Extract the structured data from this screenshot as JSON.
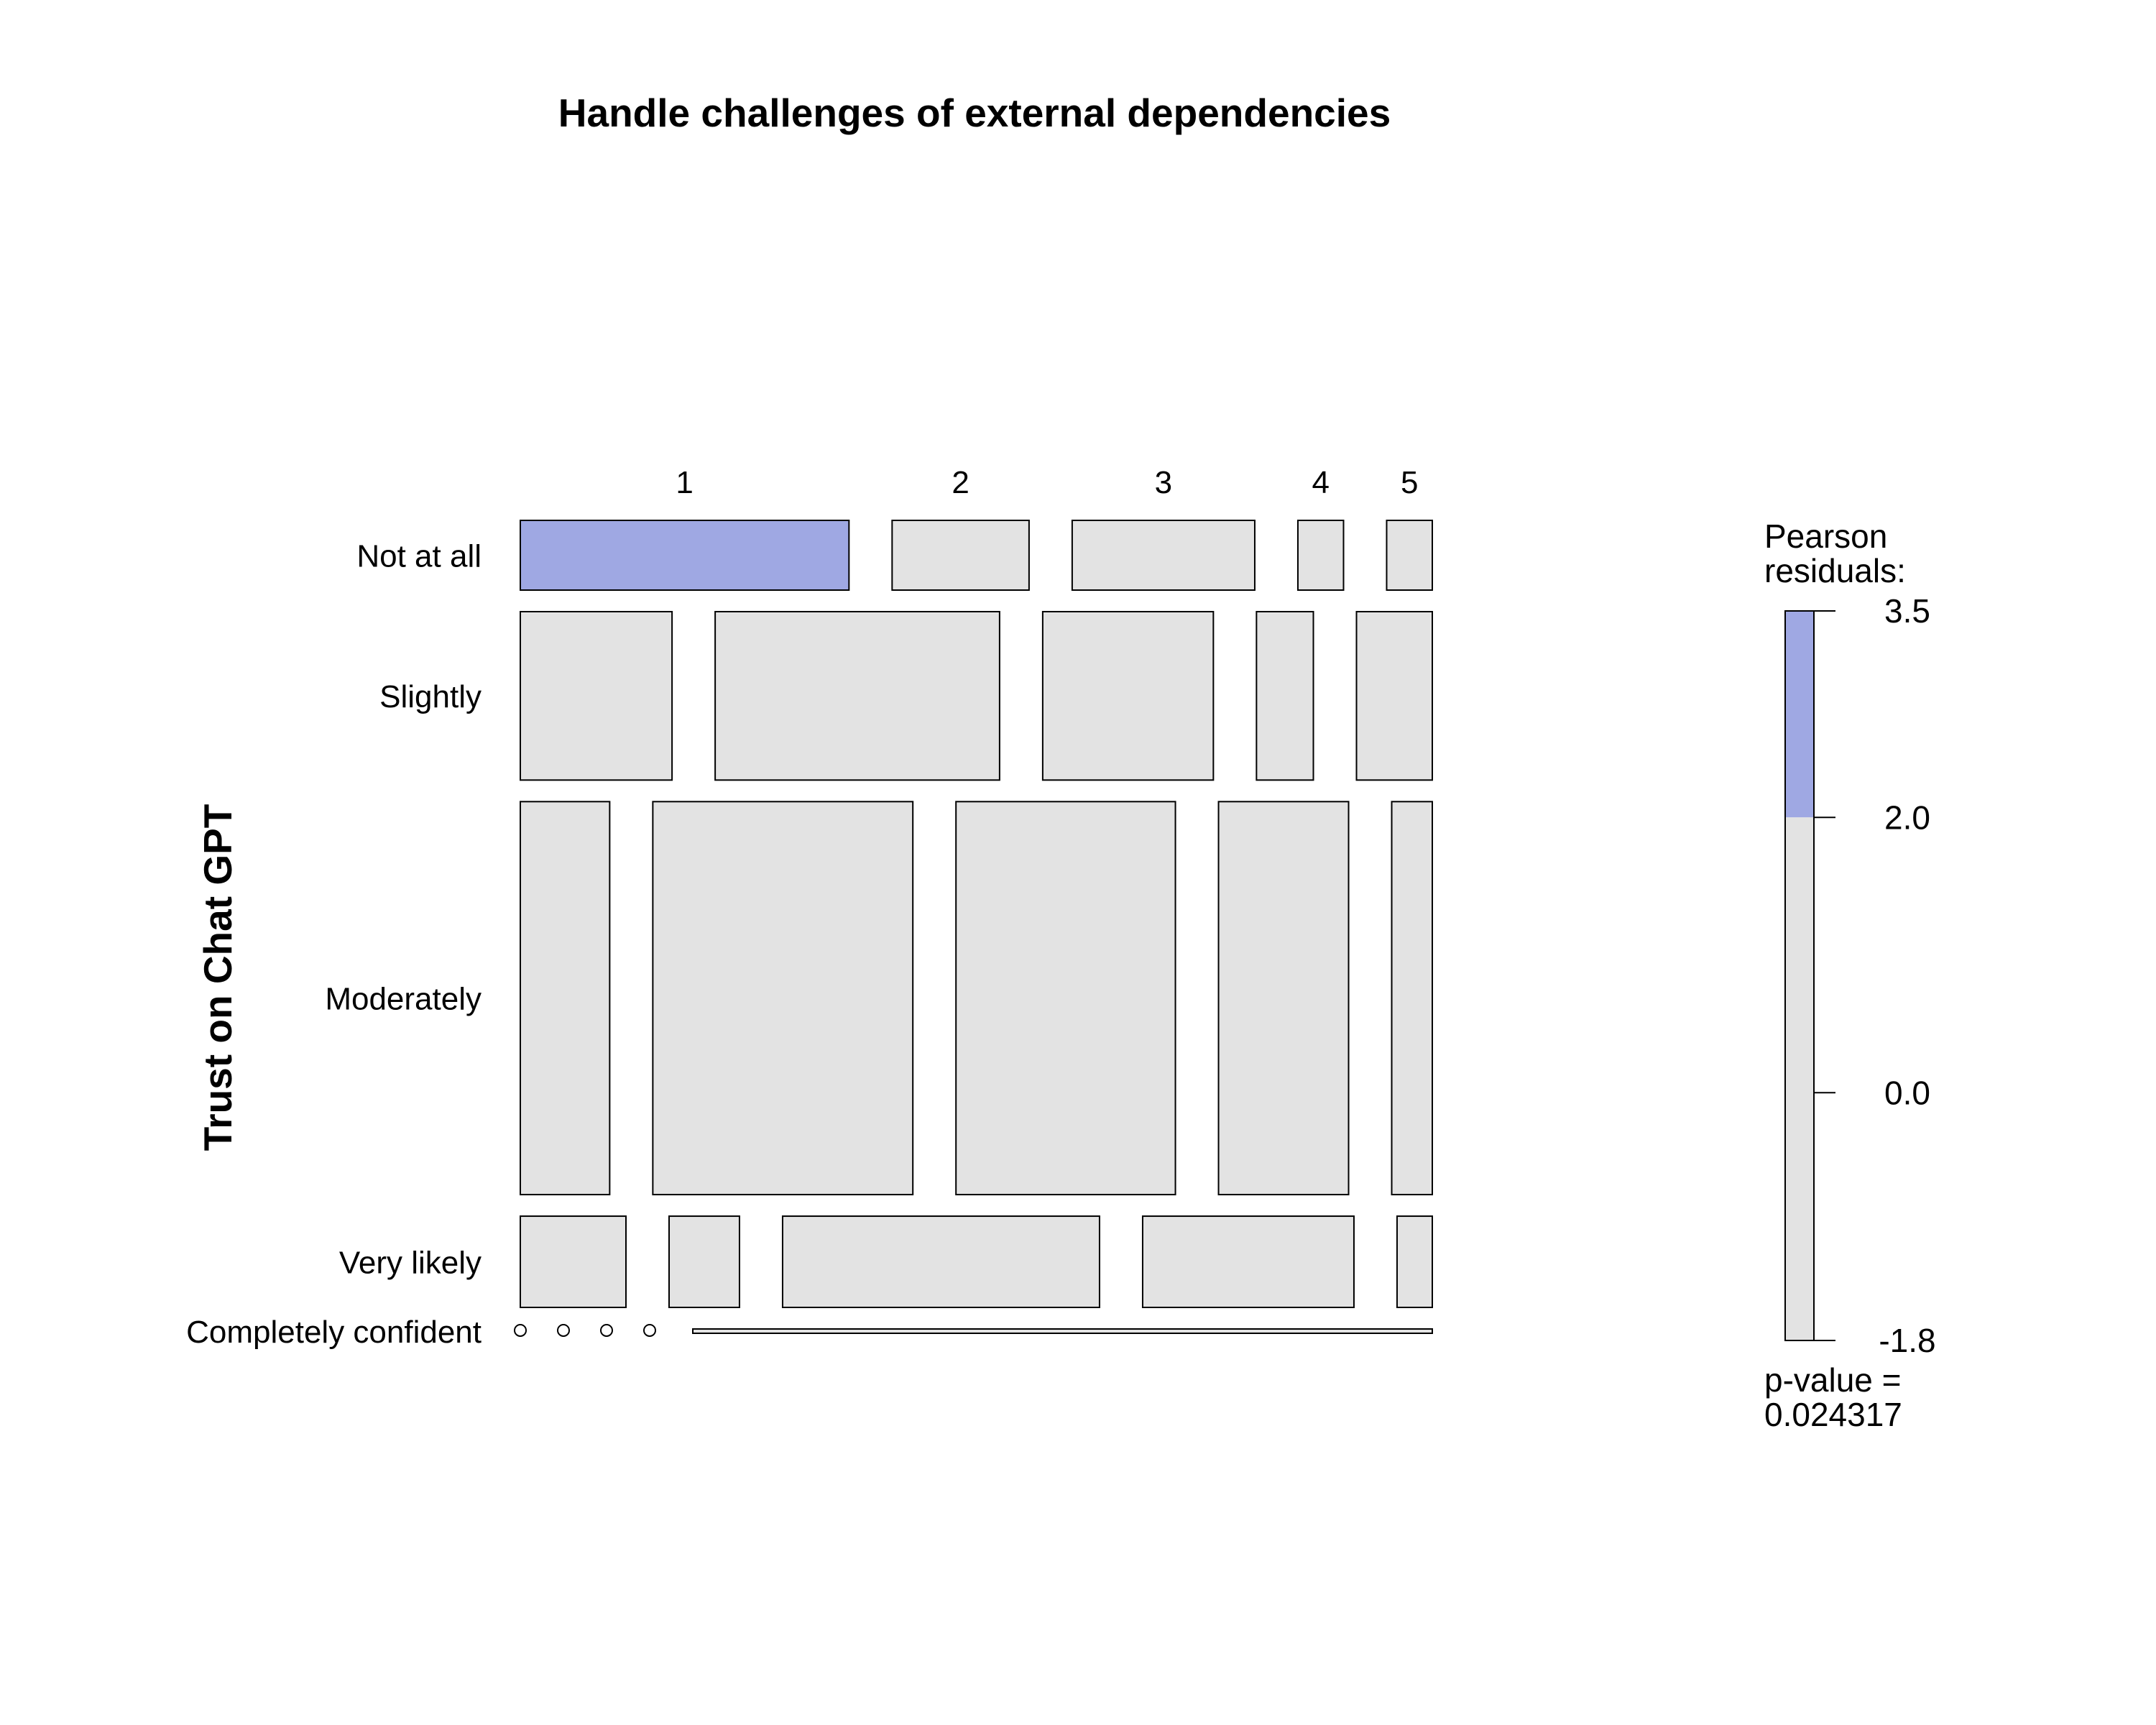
{
  "chart_data": {
    "type": "mosaic",
    "title": "Handle challenges of external dependencies",
    "xlabel": "",
    "ylabel": "Trust on Chat GPT",
    "rows": [
      "Not at all",
      "Slightly",
      "Moderately",
      "Very likely",
      "Completely confident"
    ],
    "row_fraction": [
      0.0842,
      0.2034,
      0.4746,
      0.1102,
      0.0034
    ],
    "row_segments": [
      {
        "row": "Not at all",
        "column_labels": [
          "1",
          "2",
          "3",
          "4",
          "5"
        ],
        "widths": [
          0.3636,
          0.1515,
          0.202,
          0.0505,
          0.0505
        ]
      },
      {
        "row": "Slightly",
        "column_labels": [
          "1",
          "2",
          "3",
          "4",
          "5"
        ],
        "widths": [
          0.1667,
          0.3125,
          0.1875,
          0.0625,
          0.0833
        ]
      },
      {
        "row": "Moderately",
        "column_labels": [
          "1",
          "2",
          "3",
          "4",
          "5"
        ],
        "widths": [
          0.0982,
          0.2857,
          0.2411,
          0.1429,
          0.0446
        ]
      },
      {
        "row": "Very likely",
        "column_labels": [
          "1",
          "2",
          "3",
          "4",
          "5"
        ],
        "widths": [
          0.1154,
          0.0769,
          0.3462,
          0.2308,
          0.0385
        ]
      },
      {
        "row": "Completely confident",
        "column_labels": [
          "1",
          "2",
          "3",
          "4",
          "5"
        ],
        "widths": [
          0,
          0,
          0,
          0,
          0.81
        ]
      }
    ],
    "shaded_cells": [
      {
        "row": "Not at all",
        "column": "1"
      }
    ],
    "legend": {
      "title_line1": "Pearson",
      "title_line2": "residuals:",
      "ticks": [
        "3.5",
        "2.0",
        "0.0",
        "-1.8"
      ],
      "tick_values": [
        3.5,
        2.0,
        0.0,
        -1.8
      ],
      "pvalue_line1": "p-value =",
      "pvalue_line2": "0.024317",
      "placement": "right"
    },
    "colors": {
      "positive_residual": "#9FA8E3",
      "neutral": "#E3E3E3",
      "outline": "#000000"
    }
  }
}
